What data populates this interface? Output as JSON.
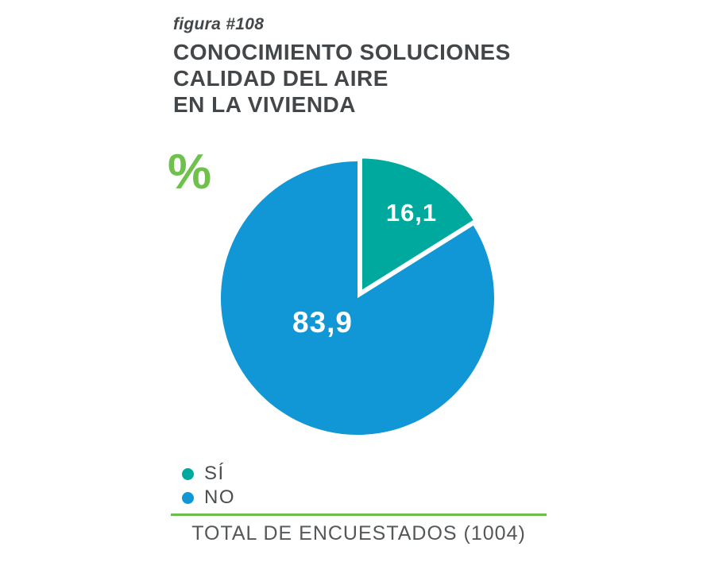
{
  "header": {
    "figure_label": "figura #108",
    "title_lines": [
      "CONOCIMIENTO SOLUCIONES",
      "CALIDAD DEL AIRE",
      "EN LA VIVIENDA"
    ]
  },
  "chart_data": {
    "type": "pie",
    "title": "CONOCIMIENTO SOLUCIONES CALIDAD DEL AIRE EN LA VIVIENDA",
    "unit_symbol": "%",
    "labels": [
      "SÍ",
      "NO"
    ],
    "values": [
      16.1,
      83.9
    ],
    "display_values": [
      "16,1",
      "83,9"
    ],
    "slice_colors": [
      "#00A99D",
      "#1197D5"
    ],
    "pie_label_color": "#FFFFFF",
    "legend_position": "bottom-left",
    "start_angle_deg": 0,
    "exploded_slice": "SÍ",
    "total_respondents": 1004
  },
  "footer": {
    "total_label": "TOTAL DE ENCUESTADOS (1004)"
  },
  "colors": {
    "accent_green": "#6CBE4B",
    "percent_green": "#6EC24C",
    "title_text": "#43474A",
    "legend_text": "#4A4E51",
    "footer_text": "#54585A",
    "background": "#FFFFFF"
  }
}
